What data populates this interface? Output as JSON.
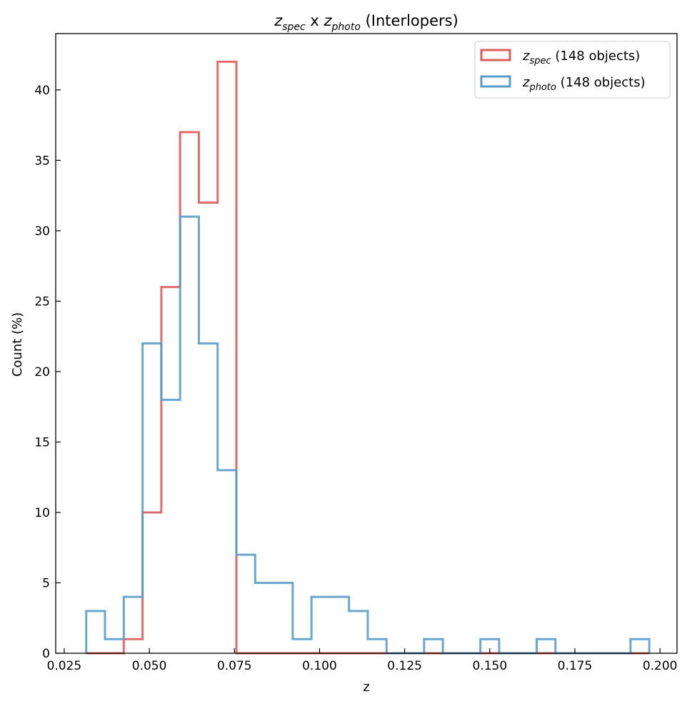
{
  "chart_data": {
    "type": "histogram-step",
    "title": {
      "z1": "z",
      "sub1": "spec",
      "mid": " x ",
      "z2": "z",
      "sub2": "photo",
      "suffix": " (Interlopers)"
    },
    "xlabel": "z",
    "ylabel": "Count (%)",
    "xlim": [
      0.0225,
      0.205
    ],
    "ylim": [
      0,
      44
    ],
    "xticks": [
      "0.025",
      "0.050",
      "0.075",
      "0.100",
      "0.125",
      "0.150",
      "0.175",
      "0.200"
    ],
    "xtick_values": [
      0.025,
      0.05,
      0.075,
      0.1,
      0.125,
      0.15,
      0.175,
      0.2
    ],
    "yticks": [
      "0",
      "5",
      "10",
      "15",
      "20",
      "25",
      "30",
      "35",
      "40"
    ],
    "ytick_values": [
      0,
      5,
      10,
      15,
      20,
      25,
      30,
      35,
      40
    ],
    "bin_start": 0.03147,
    "bin_width": 0.005513,
    "legend_position": "top-right",
    "series": [
      {
        "name": "spec",
        "legend": {
          "z": "z",
          "sub": "spec",
          "suffix": " (148 objects)"
        },
        "color": "#dd5c5c",
        "values": [
          0,
          0,
          1,
          10,
          26,
          37,
          32,
          42,
          0,
          0,
          0,
          0,
          0,
          0,
          0,
          0,
          0,
          0,
          0,
          0,
          0,
          0,
          0,
          0,
          0,
          0,
          0,
          0,
          0,
          0
        ]
      },
      {
        "name": "photo",
        "legend": {
          "z": "z",
          "sub": "photo",
          "suffix": " (148 objects)"
        },
        "color": "#5a9cc8",
        "values": [
          3,
          1,
          4,
          22,
          18,
          31,
          22,
          13,
          7,
          5,
          5,
          1,
          4,
          4,
          3,
          1,
          0,
          0,
          1,
          0,
          0,
          1,
          0,
          0,
          1,
          0,
          0,
          0,
          0,
          1
        ]
      }
    ]
  }
}
